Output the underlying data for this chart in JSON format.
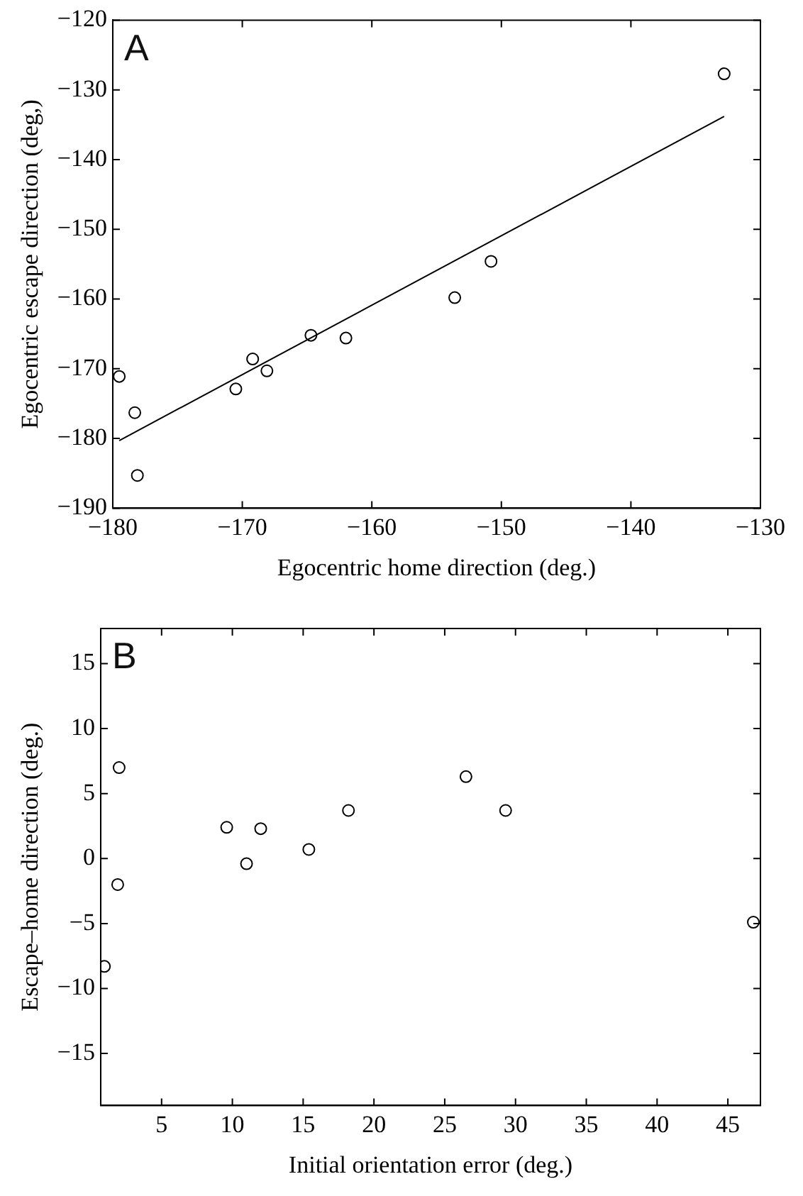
{
  "chart_data": [
    {
      "type": "scatter",
      "xlabel": "Egocentric home direction (deg.)",
      "ylabel": "Egocentric escape direction (deg,)",
      "annotations": [
        "A"
      ],
      "xlim": [
        -180,
        -130
      ],
      "xticks": [
        {
          "value": -180,
          "label": "−180"
        },
        {
          "value": -170,
          "label": "−170"
        },
        {
          "value": -160,
          "label": "−160"
        },
        {
          "value": -150,
          "label": "−150"
        },
        {
          "value": -140,
          "label": "−140"
        },
        {
          "value": -130,
          "label": "−130"
        }
      ],
      "ylim": [
        -190,
        -120
      ],
      "yticks": [
        {
          "value": -190,
          "label": "−190"
        },
        {
          "value": -180,
          "label": "−180"
        },
        {
          "value": -170,
          "label": "−170"
        },
        {
          "value": -160,
          "label": "−160"
        },
        {
          "value": -150,
          "label": "−150"
        },
        {
          "value": -140,
          "label": "−140"
        },
        {
          "value": -130,
          "label": "−130"
        },
        {
          "value": -120,
          "label": "−120"
        }
      ],
      "series": [
        {
          "marker": "circle",
          "color": "#000000",
          "x": [
            -179.5,
            -178.3,
            -178.1,
            -170.5,
            -169.2,
            -168.1,
            -164.7,
            -162.0,
            -153.6,
            -150.8,
            -132.8
          ],
          "values": [
            -171.1,
            -176.3,
            -185.3,
            -172.9,
            -168.6,
            -170.3,
            -165.2,
            -165.6,
            -159.8,
            -154.6,
            -127.7
          ]
        },
        {
          "type": "line",
          "marker": "none",
          "color": "#000000",
          "x": [
            -179.5,
            -132.8
          ],
          "values": [
            -180.3,
            -133.8
          ]
        }
      ]
    },
    {
      "type": "scatter",
      "xlabel": "Initial orientation error (deg.)",
      "ylabel": "Escape–home direction (deg.)",
      "annotations": [
        "B"
      ],
      "xlim": [
        0.7,
        47.3
      ],
      "xticks": [
        5,
        10,
        15,
        20,
        25,
        30,
        35,
        40,
        45
      ],
      "ylim": [
        -19,
        17.7
      ],
      "yticks": [
        {
          "value": -15,
          "label": "−15"
        },
        {
          "value": -10,
          "label": "−10"
        },
        {
          "value": -5,
          "label": "−5"
        },
        0,
        5,
        10,
        15
      ],
      "series": [
        {
          "marker": "circle",
          "color": "#000000",
          "x": [
            0.96,
            1.9,
            2.0,
            9.6,
            11.0,
            12.0,
            15.4,
            18.2,
            26.5,
            29.3,
            46.8
          ],
          "values": [
            -8.3,
            -2.0,
            7.0,
            2.4,
            -0.4,
            2.3,
            0.7,
            3.7,
            6.3,
            3.7,
            -4.9
          ]
        }
      ]
    }
  ]
}
